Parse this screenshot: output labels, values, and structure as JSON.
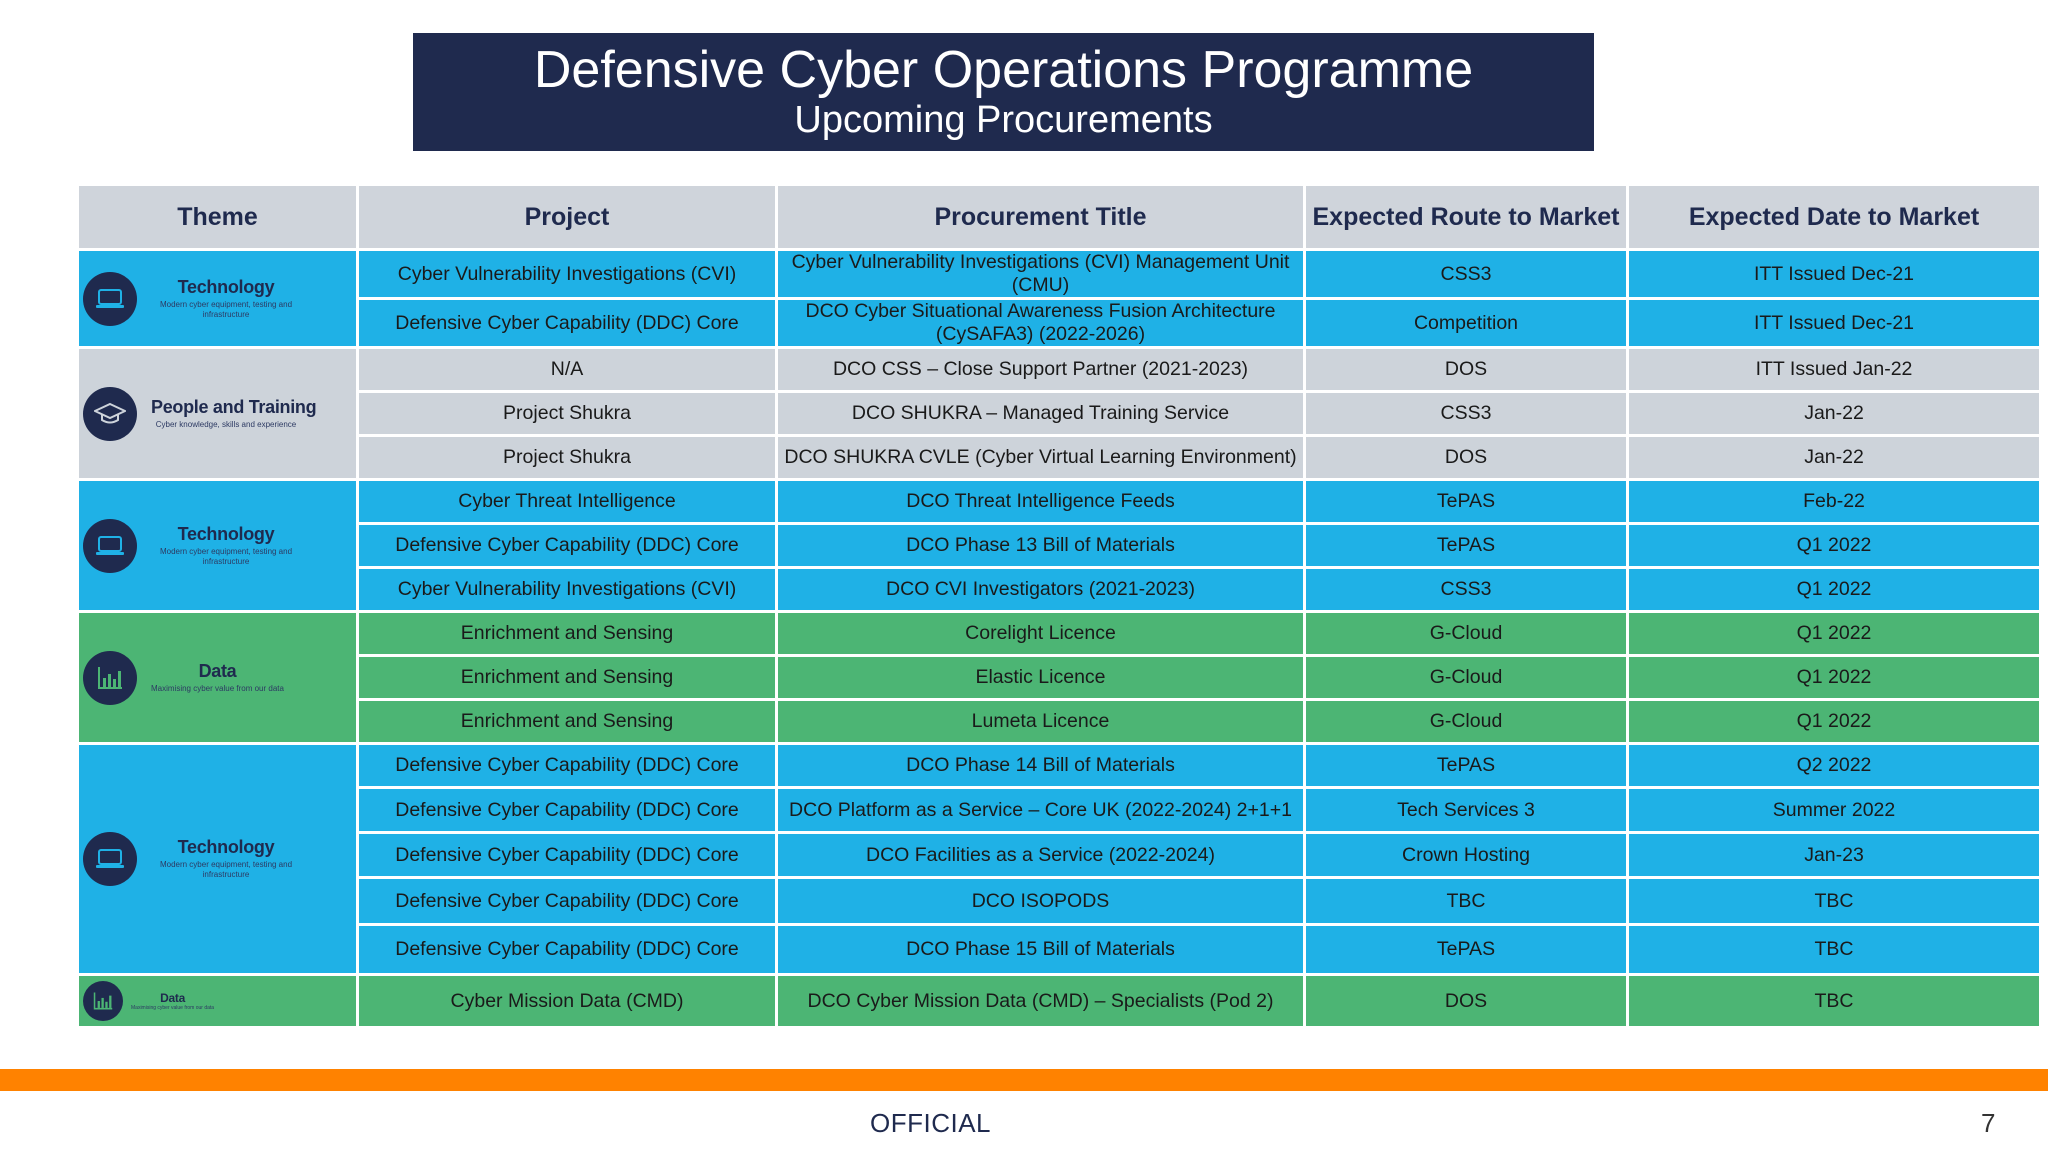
{
  "banner": {
    "title": "Defensive Cyber Operations Programme",
    "subtitle": "Upcoming Procurements"
  },
  "table": {
    "headers": [
      "Theme",
      "Project",
      "Procurement Title",
      "Expected Route to Market",
      "Expected Date to Market"
    ],
    "themes": [
      {
        "name": "Technology",
        "sub": "Modern cyber equipment, testing and infrastructure",
        "icon": "laptop-icon"
      },
      {
        "name": "People and Training",
        "sub": "Cyber knowledge, skills and experience",
        "icon": "graduation-cap-icon"
      },
      {
        "name": "Technology",
        "sub": "Modern cyber equipment, testing and infrastructure",
        "icon": "laptop-icon"
      },
      {
        "name": "Data",
        "sub": "Maximising cyber value from our data",
        "icon": "chart-icon"
      },
      {
        "name": "Technology",
        "sub": "Modern cyber equipment, testing and infrastructure",
        "icon": "laptop-icon"
      },
      {
        "name": "Data",
        "sub": "Maximising cyber value from our data",
        "icon": "chart-icon"
      }
    ],
    "rows": [
      [
        "Cyber Vulnerability Investigations (CVI)",
        "Cyber Vulnerability Investigations (CVI) Management Unit (CMU)",
        "CSS3",
        "ITT Issued Dec-21"
      ],
      [
        "Defensive Cyber Capability (DDC) Core",
        "DCO Cyber Situational Awareness Fusion Architecture (CySAFA3) (2022-2026)",
        "Competition",
        "ITT Issued Dec-21"
      ],
      [
        "N/A",
        "DCO CSS – Close Support Partner (2021-2023)",
        "DOS",
        "ITT Issued Jan-22"
      ],
      [
        "Project Shukra",
        "DCO SHUKRA – Managed Training Service",
        "CSS3",
        "Jan-22"
      ],
      [
        "Project Shukra",
        "DCO SHUKRA CVLE (Cyber Virtual Learning Environment)",
        "DOS",
        "Jan-22"
      ],
      [
        "Cyber Threat Intelligence",
        "DCO Threat Intelligence Feeds",
        "TePAS",
        "Feb-22"
      ],
      [
        "Defensive Cyber Capability (DDC) Core",
        "DCO Phase 13 Bill of Materials",
        "TePAS",
        "Q1 2022"
      ],
      [
        "Cyber Vulnerability Investigations (CVI)",
        "DCO CVI Investigators (2021-2023)",
        "CSS3",
        "Q1 2022"
      ],
      [
        "Enrichment and Sensing",
        "Corelight Licence",
        "G-Cloud",
        "Q1 2022"
      ],
      [
        "Enrichment and Sensing",
        "Elastic Licence",
        "G-Cloud",
        "Q1 2022"
      ],
      [
        "Enrichment and Sensing",
        "Lumeta Licence",
        "G-Cloud",
        "Q1 2022"
      ],
      [
        "Defensive Cyber Capability (DDC) Core",
        "DCO Phase 14 Bill of Materials",
        "TePAS",
        "Q2 2022"
      ],
      [
        "Defensive Cyber Capability (DDC) Core",
        "DCO Platform as a Service – Core UK (2022-2024) 2+1+1",
        "Tech Services 3",
        "Summer 2022"
      ],
      [
        "Defensive Cyber Capability (DDC) Core",
        "DCO Facilities as a Service (2022-2024)",
        "Crown Hosting",
        "Jan-23"
      ],
      [
        "Defensive Cyber Capability (DDC) Core",
        "DCO ISOPODS",
        "TBC",
        "TBC"
      ],
      [
        "Defensive Cyber Capability (DDC) Core",
        "DCO Phase 15 Bill of Materials",
        "TePAS",
        "TBC"
      ],
      [
        "Cyber Mission Data (CMD)",
        "DCO Cyber Mission Data (CMD) – Specialists (Pod 2)",
        "DOS",
        "TBC"
      ]
    ]
  },
  "footer": {
    "classification": "OFFICIAL",
    "page_number": "7"
  },
  "colors": {
    "banner": "#1f2a4e",
    "technology": "#1fb1e6",
    "people": "#cdd3da",
    "data": "#4cb574",
    "accent_bar": "#ff8200"
  }
}
